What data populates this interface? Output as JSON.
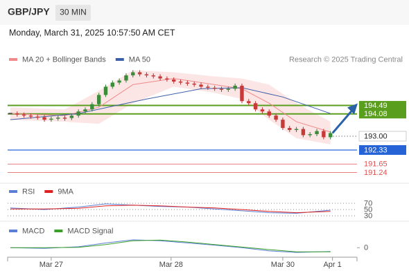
{
  "header": {
    "symbol": "GBP/JPY",
    "interval": "30 MIN",
    "datetime": "Monday, March 31, 2025 10:57:50 AM CET"
  },
  "chart_data": [
    {
      "type": "candlestick",
      "source": "Research © 2025 Trading Central",
      "xlim": [
        -0.4,
        50.9
      ],
      "ylim": [
        190.82,
        196.42
      ],
      "xticks": [
        {
          "value": 6,
          "label": "Mar 27"
        },
        {
          "value": 23.6,
          "label": "Mar 28"
        },
        {
          "value": 40,
          "label": "Mar 30"
        },
        {
          "value": 47.3,
          "label": "Apr 1"
        }
      ],
      "closes": [
        194.1,
        194.05,
        194.0,
        193.95,
        193.92,
        193.8,
        193.85,
        193.9,
        193.88,
        194.0,
        194.2,
        194.3,
        194.55,
        195.0,
        195.4,
        195.6,
        195.7,
        195.95,
        196.1,
        196.0,
        195.95,
        195.9,
        195.8,
        195.75,
        195.65,
        195.6,
        195.55,
        195.5,
        195.4,
        195.35,
        195.3,
        195.25,
        195.3,
        195.45,
        194.7,
        194.6,
        194.3,
        194.2,
        194.0,
        193.8,
        193.4,
        193.3,
        193.35,
        193.05,
        193.1,
        193.25,
        192.95,
        193.15
      ],
      "series": [
        {
          "name": "MA 20 + Bollinger Bands",
          "color": "#f08a8a",
          "x": [
            0,
            8,
            13,
            18,
            24,
            30,
            34,
            38,
            42,
            47
          ],
          "values": [
            194.1,
            194.0,
            194.4,
            195.5,
            195.8,
            195.5,
            195.3,
            194.6,
            193.7,
            193.2
          ],
          "upper": [
            194.4,
            194.3,
            195.2,
            196.2,
            196.1,
            195.9,
            195.8,
            195.5,
            194.6,
            193.7
          ],
          "lower": [
            193.8,
            193.7,
            193.6,
            194.6,
            195.4,
            195.1,
            194.8,
            193.8,
            192.9,
            192.6
          ]
        },
        {
          "name": "MA 50",
          "color": "#3b5fa8",
          "x": [
            0,
            10,
            20,
            28,
            34,
            40,
            47
          ],
          "values": [
            193.8,
            194.1,
            194.8,
            195.3,
            195.35,
            194.9,
            194.1
          ]
        }
      ],
      "levels": [
        {
          "value": 194.49,
          "color": "#5a9e1e"
        },
        {
          "value": 194.08,
          "color": "#5a9e1e"
        },
        {
          "value": 193,
          "label": "193.00",
          "color": "#333333"
        },
        {
          "value": 192.33,
          "color": "#2563d6"
        },
        {
          "value": 191.65,
          "color": "#e05050"
        },
        {
          "value": 191.24,
          "color": "#e05050"
        }
      ]
    },
    {
      "type": "line",
      "ylim": [
        17,
        90
      ],
      "yticks": [
        70,
        50,
        30
      ],
      "series": [
        {
          "name": "RSI",
          "color": "#5b7fd6",
          "x": [
            0,
            5,
            10,
            14,
            18,
            22,
            26,
            30,
            34,
            38,
            42,
            47
          ],
          "values": [
            55,
            50,
            58,
            68,
            64,
            60,
            58,
            52,
            46,
            40,
            38,
            48
          ]
        },
        {
          "name": "9MA",
          "color": "#e02020",
          "x": [
            0,
            5,
            10,
            14,
            18,
            22,
            26,
            30,
            34,
            38,
            42,
            47
          ],
          "values": [
            52,
            52,
            54,
            62,
            64,
            62,
            58,
            55,
            50,
            44,
            40,
            44
          ]
        }
      ]
    },
    {
      "type": "line",
      "ylim": [
        -0.3,
        0.4
      ],
      "yticks": [
        0
      ],
      "series": [
        {
          "name": "MACD",
          "color": "#5b7fd6",
          "x": [
            0,
            5,
            10,
            14,
            18,
            22,
            26,
            30,
            34,
            38,
            42,
            47
          ],
          "values": [
            0.0,
            -0.02,
            0.03,
            0.15,
            0.25,
            0.22,
            0.15,
            0.08,
            0.0,
            -0.1,
            -0.15,
            -0.12
          ]
        },
        {
          "name": "MACD Signal",
          "color": "#3aa02a",
          "x": [
            0,
            5,
            10,
            14,
            18,
            22,
            26,
            30,
            34,
            38,
            42,
            47
          ],
          "values": [
            0.0,
            0.0,
            0.01,
            0.1,
            0.22,
            0.24,
            0.18,
            0.1,
            0.02,
            -0.06,
            -0.13,
            -0.13
          ]
        }
      ]
    }
  ]
}
